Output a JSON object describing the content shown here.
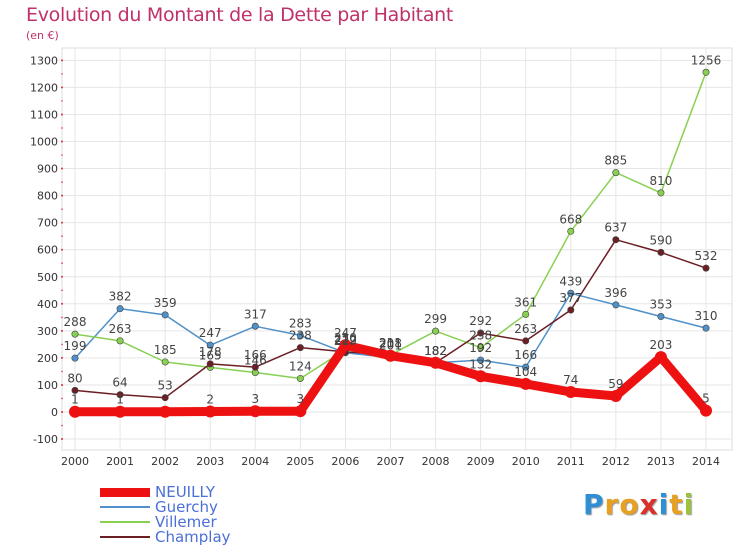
{
  "title": "Evolution du Montant de la Dette par Habitant",
  "subtitle": "(en €)",
  "logo": {
    "text": "Proxiti",
    "colors": [
      "#2e8fd6",
      "#e8a020",
      "#e8a020",
      "#d9302a",
      "#2e8fd6",
      "#e8a020",
      "#9ac23a"
    ]
  },
  "chart_data": {
    "type": "line",
    "title": "Evolution du Montant de la Dette par Habitant",
    "subtitle": "(en €)",
    "xlabel": "",
    "ylabel": "",
    "x": [
      "2000",
      "2001",
      "2002",
      "2003",
      "2004",
      "2005",
      "2006",
      "2007",
      "2008",
      "2009",
      "2010",
      "2011",
      "2012",
      "2013",
      "2014"
    ],
    "yticks": [
      -100,
      0,
      100,
      200,
      300,
      400,
      500,
      600,
      700,
      800,
      900,
      1000,
      1100,
      1200,
      1300
    ],
    "ylim": [
      -100,
      1300
    ],
    "grid": true,
    "legend_position": "bottom-left",
    "series": [
      {
        "name": "NEUILLY",
        "color": "#ee1111",
        "values": [
          1,
          1,
          1,
          2,
          3,
          3,
          247,
          208,
          182,
          132,
          104,
          74,
          59,
          203,
          5
        ]
      },
      {
        "name": "Guerchy",
        "color": "#4f91c8",
        "values": [
          199,
          382,
          359,
          247,
          317,
          283,
          219,
          201,
          182,
          192,
          166,
          439,
          396,
          353,
          310
        ]
      },
      {
        "name": "Villemer",
        "color": "#88d052",
        "values": [
          288,
          263,
          185,
          165,
          146,
          124,
          230,
          211,
          299,
          238,
          361,
          668,
          885,
          810,
          1256
        ]
      },
      {
        "name": "Champlay",
        "color": "#6b1f25",
        "values": [
          80,
          64,
          53,
          178,
          166,
          238,
          222,
          211,
          182,
          292,
          263,
          377,
          637,
          590,
          532
        ]
      }
    ],
    "data_labels": [
      {
        "series": 0,
        "labels": [
          "1",
          "1",
          "",
          "2",
          "3",
          "3",
          "247",
          "208",
          "182",
          "132",
          "104",
          "74",
          "59",
          "203",
          "5"
        ]
      },
      {
        "series": 1,
        "labels": [
          "199",
          "382",
          "359",
          "247",
          "317",
          "283",
          "219",
          "201",
          "182",
          "192",
          "166",
          "439",
          "396",
          "353",
          "310"
        ]
      },
      {
        "series": 2,
        "labels": [
          "288",
          "263",
          "185",
          "165",
          "146",
          "124",
          "230",
          "211",
          "299",
          "238",
          "361",
          "668",
          "885",
          "810",
          "1256"
        ]
      },
      {
        "series": 3,
        "labels": [
          "80",
          "64",
          "53",
          "178",
          "166",
          "238",
          "222",
          "211",
          "182",
          "292",
          "263",
          "377",
          "637",
          "590",
          "532"
        ]
      }
    ]
  }
}
